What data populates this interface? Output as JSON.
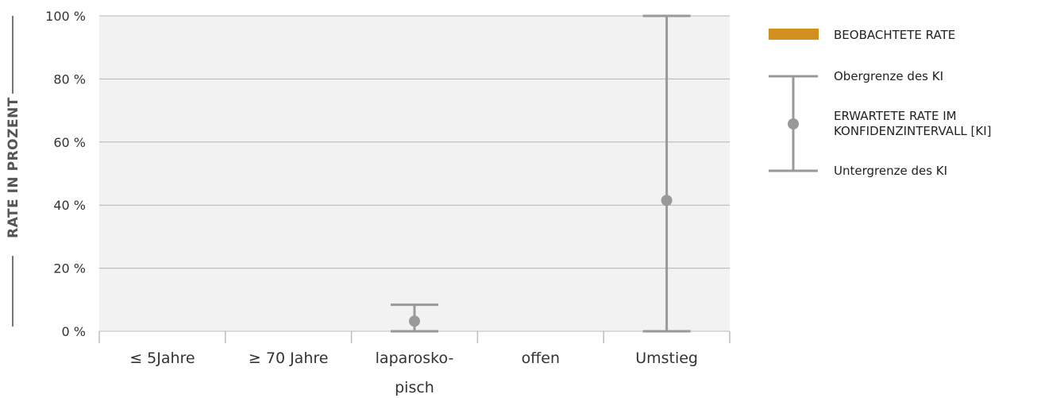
{
  "chart_data": {
    "type": "bar",
    "ylabel": "RATE IN PROZENT",
    "ylim": [
      0,
      100
    ],
    "yticks": [
      0,
      20,
      40,
      60,
      80,
      100
    ],
    "ytick_suffix": " %",
    "categories": [
      [
        "≤ 5Jahre"
      ],
      [
        "≥ 70 Jahre"
      ],
      [
        "laparosko-",
        "pisch"
      ],
      [
        "offen"
      ],
      [
        "Umstieg"
      ]
    ],
    "series": [
      {
        "name": "BEOBACHTETE RATE",
        "values": [
          null,
          null,
          null,
          null,
          null
        ]
      },
      {
        "name": "ERWARTETE RATE IM KONFIDENZINTERVALL [KI]",
        "values": [
          null,
          null,
          3.2,
          null,
          41.5
        ]
      }
    ],
    "ci_upper": [
      null,
      null,
      8.4,
      null,
      100
    ],
    "ci_lower": [
      null,
      null,
      0,
      null,
      0
    ],
    "grid": true,
    "legend_position": "right",
    "legend": {
      "observed": "BEOBACHTETE RATE",
      "upper": "Obergrenze des KI",
      "expected_line1": "ERWARTETE RATE IM",
      "expected_line2": "KONFIDENZINTERVALL [KI]",
      "lower": "Untergrenze des KI"
    },
    "colors": {
      "observed": "#d38f1d",
      "ci": "#999999",
      "plot_bg": "#f2f2f2",
      "grid": "#b5b5b5"
    }
  }
}
